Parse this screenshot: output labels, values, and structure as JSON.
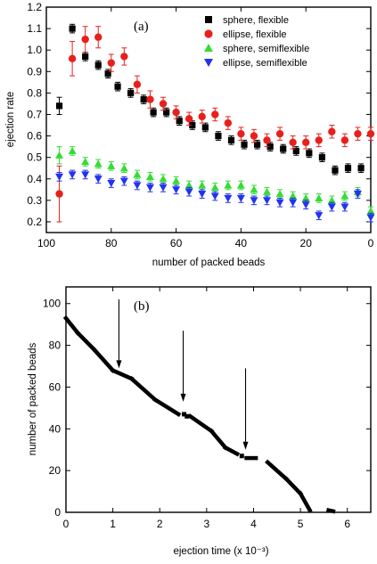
{
  "chart_data": [
    {
      "type": "scatter",
      "panel_label": "(a)",
      "xlabel": "number of packed beads",
      "ylabel": "ejection rate",
      "xlim": [
        100,
        0
      ],
      "ylim": [
        0.15,
        1.2
      ],
      "xticks": [
        100,
        80,
        60,
        40,
        20,
        0
      ],
      "yticks": [
        0.2,
        0.3,
        0.4,
        0.5,
        0.6,
        0.7,
        0.8,
        0.9,
        1.0,
        1.1,
        1.2
      ],
      "legend_position": "top-right",
      "series": [
        {
          "name": "sphere, flexible",
          "marker": "square",
          "color": "#000000",
          "x": [
            96,
            92,
            88,
            84,
            81,
            78,
            74,
            70,
            67,
            63,
            59,
            55,
            51,
            47,
            43,
            39,
            35,
            31,
            27,
            23,
            19,
            15,
            11,
            7,
            3
          ],
          "y": [
            0.74,
            1.1,
            0.97,
            0.93,
            0.89,
            0.83,
            0.8,
            0.77,
            0.71,
            0.71,
            0.67,
            0.65,
            0.64,
            0.6,
            0.58,
            0.56,
            0.56,
            0.55,
            0.54,
            0.53,
            0.52,
            0.5,
            0.44,
            0.45,
            0.45
          ],
          "yerr": [
            0.04,
            0.02,
            0.02,
            0.02,
            0.02,
            0.02,
            0.02,
            0.02,
            0.02,
            0.02,
            0.02,
            0.02,
            0.02,
            0.02,
            0.02,
            0.02,
            0.02,
            0.02,
            0.02,
            0.02,
            0.02,
            0.02,
            0.02,
            0.02,
            0.02
          ]
        },
        {
          "name": "ellipse, flexible",
          "marker": "circle",
          "color": "#e8201c",
          "x": [
            96,
            92,
            88,
            84,
            80,
            76,
            72,
            68,
            64,
            60,
            56,
            52,
            48,
            44,
            40,
            36,
            32,
            28,
            24,
            20,
            16,
            12,
            8,
            4,
            0
          ],
          "y": [
            0.33,
            0.96,
            1.05,
            1.06,
            0.94,
            0.97,
            0.84,
            0.77,
            0.75,
            0.71,
            0.68,
            0.69,
            0.7,
            0.66,
            0.61,
            0.6,
            0.58,
            0.61,
            0.57,
            0.57,
            0.58,
            0.62,
            0.58,
            0.61,
            0.61
          ],
          "yerr": [
            0.13,
            0.08,
            0.06,
            0.05,
            0.04,
            0.04,
            0.04,
            0.04,
            0.03,
            0.03,
            0.03,
            0.03,
            0.03,
            0.03,
            0.03,
            0.03,
            0.03,
            0.03,
            0.03,
            0.03,
            0.03,
            0.03,
            0.03,
            0.03,
            0.03
          ]
        },
        {
          "name": "sphere, semiflexible",
          "marker": "triangle-up",
          "color": "#33dd33",
          "x": [
            96,
            92,
            88,
            84,
            80,
            76,
            72,
            68,
            64,
            60,
            56,
            52,
            48,
            44,
            40,
            36,
            32,
            28,
            24,
            20,
            16,
            12,
            8,
            4,
            0
          ],
          "y": [
            0.51,
            0.53,
            0.48,
            0.47,
            0.46,
            0.45,
            0.42,
            0.41,
            0.4,
            0.39,
            0.37,
            0.37,
            0.36,
            0.37,
            0.37,
            0.35,
            0.34,
            0.33,
            0.32,
            0.31,
            0.31,
            0.3,
            0.32,
            0.34,
            0.25
          ],
          "yerr": [
            0.04,
            0.02,
            0.02,
            0.02,
            0.02,
            0.02,
            0.02,
            0.02,
            0.02,
            0.02,
            0.02,
            0.02,
            0.02,
            0.02,
            0.02,
            0.02,
            0.02,
            0.02,
            0.02,
            0.02,
            0.02,
            0.02,
            0.02,
            0.02,
            0.02
          ]
        },
        {
          "name": "ellipse, semiflexible",
          "marker": "triangle-down",
          "color": "#2233ee",
          "x": [
            96,
            92,
            88,
            84,
            80,
            76,
            72,
            68,
            64,
            60,
            56,
            52,
            48,
            44,
            40,
            36,
            32,
            28,
            24,
            20,
            16,
            12,
            8,
            4,
            0
          ],
          "y": [
            0.41,
            0.42,
            0.42,
            0.4,
            0.38,
            0.39,
            0.37,
            0.36,
            0.36,
            0.35,
            0.34,
            0.33,
            0.32,
            0.31,
            0.31,
            0.3,
            0.3,
            0.29,
            0.29,
            0.28,
            0.23,
            0.27,
            0.27,
            0.33,
            0.22
          ],
          "yerr": [
            0.02,
            0.02,
            0.02,
            0.02,
            0.02,
            0.02,
            0.02,
            0.02,
            0.02,
            0.02,
            0.02,
            0.02,
            0.02,
            0.02,
            0.02,
            0.02,
            0.02,
            0.02,
            0.02,
            0.02,
            0.02,
            0.02,
            0.02,
            0.02,
            0.02
          ]
        }
      ]
    },
    {
      "type": "scatter",
      "panel_label": "(b)",
      "xlabel": "ejection time (x 10⁻³)",
      "ylabel": "number of packed beads",
      "xlim": [
        0,
        6.5
      ],
      "ylim": [
        0,
        108
      ],
      "xticks": [
        0,
        1,
        2,
        3,
        4,
        5,
        6
      ],
      "yticks": [
        0,
        20,
        40,
        60,
        80,
        100
      ],
      "color": "#000000",
      "segments": [
        {
          "x_start": 0.0,
          "y_start": 93,
          "x_end": 0.25,
          "y_end": 86
        },
        {
          "x_start": 0.25,
          "y_start": 86,
          "x_end": 0.6,
          "y_end": 78
        },
        {
          "x_start": 0.6,
          "y_start": 78,
          "x_end": 1.0,
          "y_end": 68
        },
        {
          "x_start": 1.0,
          "y_start": 68,
          "x_end": 1.4,
          "y_end": 64
        },
        {
          "x_start": 1.4,
          "y_start": 64,
          "x_end": 1.9,
          "y_end": 54
        },
        {
          "x_start": 1.9,
          "y_start": 54,
          "x_end": 2.4,
          "y_end": 47
        },
        {
          "x_start": 2.65,
          "y_start": 46,
          "x_end": 3.1,
          "y_end": 39
        },
        {
          "x_start": 3.1,
          "y_start": 39,
          "x_end": 3.4,
          "y_end": 31
        },
        {
          "x_start": 3.4,
          "y_start": 31,
          "x_end": 3.65,
          "y_end": 28
        },
        {
          "x_start": 3.85,
          "y_start": 26,
          "x_end": 4.05,
          "y_end": 26
        },
        {
          "x_start": 4.3,
          "y_start": 24,
          "x_end": 4.7,
          "y_end": 16
        },
        {
          "x_start": 4.7,
          "y_start": 16,
          "x_end": 5.0,
          "y_end": 9
        },
        {
          "x_start": 5.0,
          "y_start": 9,
          "x_end": 5.2,
          "y_end": 1
        },
        {
          "x_start": 5.6,
          "y_start": 1,
          "x_end": 5.7,
          "y_end": 0.5
        }
      ],
      "isolated_points": [
        {
          "x": 2.52,
          "y": 47
        },
        {
          "x": 2.58,
          "y": 46
        },
        {
          "x": 3.75,
          "y": 27
        }
      ],
      "arrows": [
        {
          "x": 1.13,
          "tail_y": 102,
          "head_y": 69
        },
        {
          "x": 2.5,
          "tail_y": 87,
          "head_y": 53
        },
        {
          "x": 3.83,
          "tail_y": 69,
          "head_y": 30
        }
      ]
    }
  ]
}
